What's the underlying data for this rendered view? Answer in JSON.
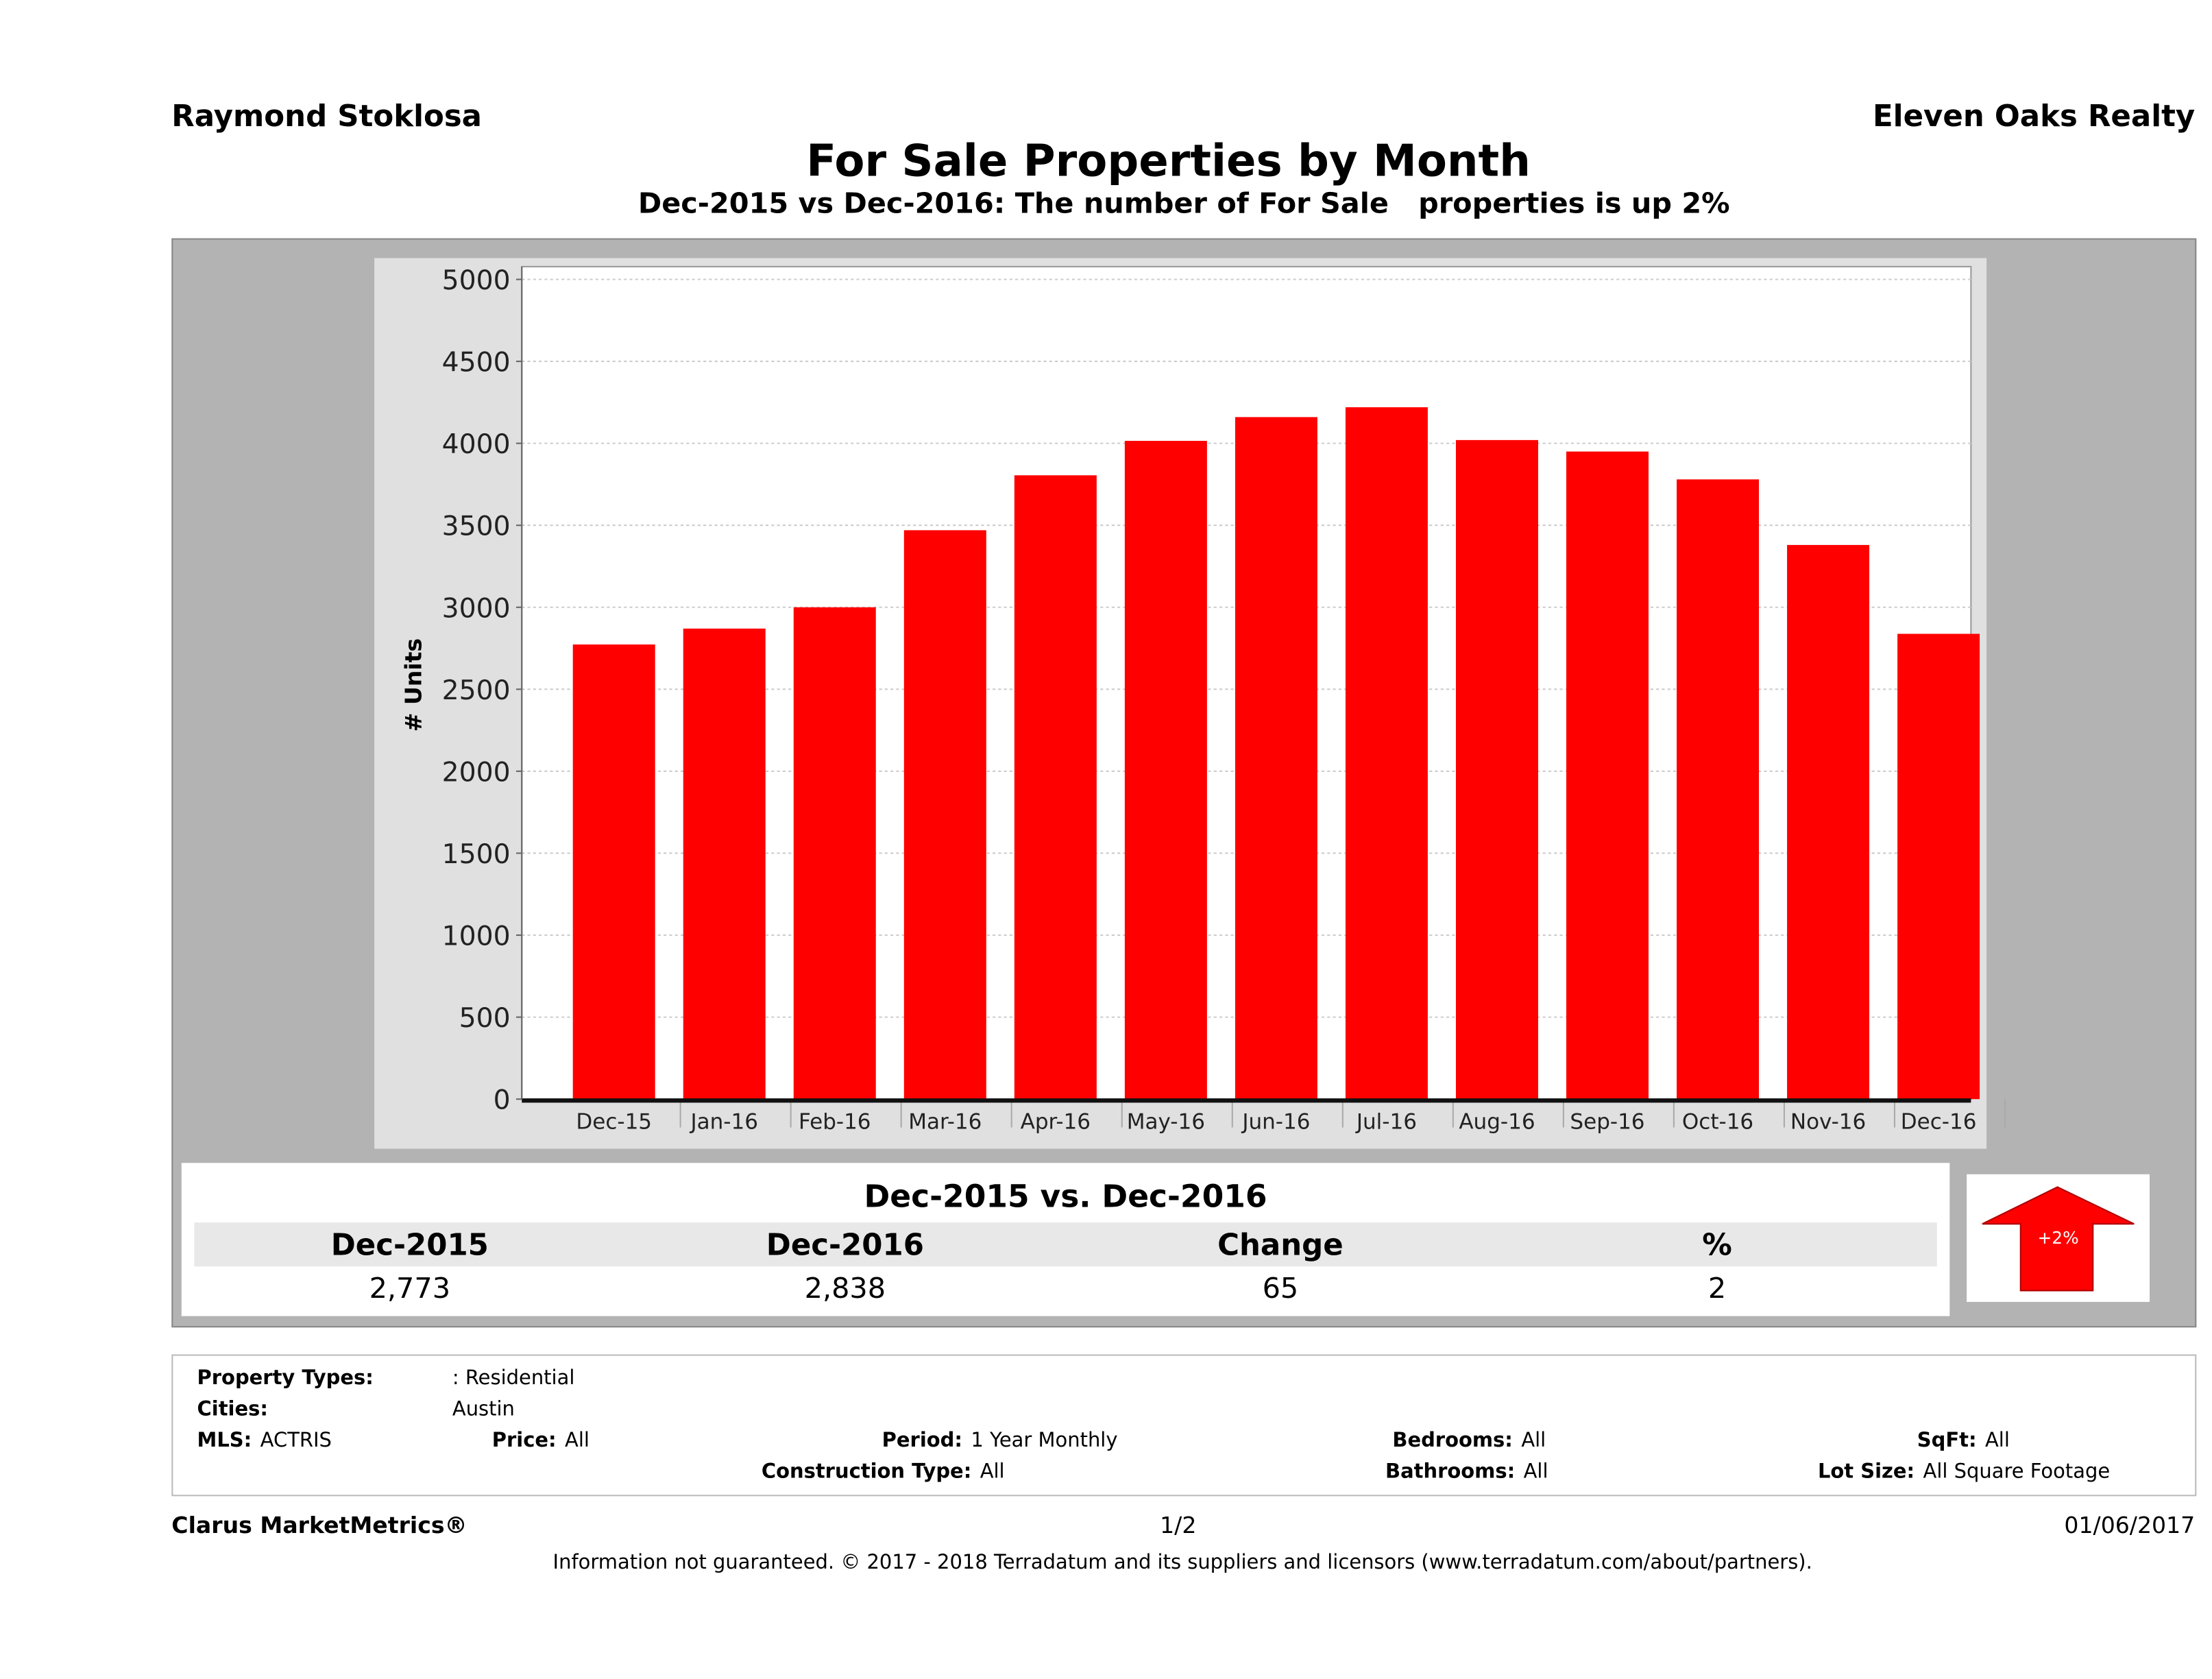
{
  "header": {
    "agent": "Raymond Stoklosa",
    "broker": "Eleven Oaks Realty",
    "title": "For Sale Properties by Month",
    "subtitle": "Dec-2015 vs Dec-2016: The number of For Sale   properties is up 2%"
  },
  "chart_data": {
    "type": "bar",
    "title": "For Sale Properties by Month",
    "xlabel": "",
    "ylabel": "# Units",
    "ylim": [
      0,
      5000
    ],
    "yticks": [
      "0",
      "500",
      "1000",
      "1500",
      "2000",
      "2500",
      "3000",
      "3500",
      "4000",
      "4500",
      "5000"
    ],
    "grid": true,
    "bar_color": "#ff0000",
    "categories": [
      "Dec-15",
      "Jan-16",
      "Feb-16",
      "Mar-16",
      "Apr-16",
      "May-16",
      "Jun-16",
      "Jul-16",
      "Aug-16",
      "Sep-16",
      "Oct-16",
      "Nov-16",
      "Dec-16"
    ],
    "values": [
      2773,
      2870,
      3000,
      3470,
      3805,
      4015,
      4160,
      4220,
      4020,
      3950,
      3780,
      3380,
      2838
    ]
  },
  "summary": {
    "title": "Dec-2015 vs. Dec-2016",
    "headers": [
      "Dec-2015",
      "Dec-2016",
      "Change",
      "%"
    ],
    "values": [
      "2,773",
      "2,838",
      "65",
      "2"
    ],
    "badge": "+2%",
    "badge_color": "#ff0000",
    "arrow_icon": "arrow-up-icon"
  },
  "criteria": {
    "property_types_label": "Property Types:",
    "property_types": ": Residential",
    "cities_label": "Cities:",
    "cities": "Austin",
    "mls_label": "MLS:",
    "mls": "ACTRIS",
    "price_label": "Price:",
    "price": "All",
    "period_label": "Period:",
    "period": "1 Year Monthly",
    "construction_label": "Construction Type:",
    "construction": "All",
    "bedrooms_label": "Bedrooms:",
    "bedrooms": "All",
    "bathrooms_label": "Bathrooms:",
    "bathrooms": "All",
    "sqft_label": "SqFt:",
    "sqft": "All",
    "lot_label": "Lot Size:",
    "lot": "All Square Footage"
  },
  "footer": {
    "brand": "Clarus MarketMetrics®",
    "page": "1/2",
    "date": "01/06/2017",
    "disclaimer": "Information not guaranteed. © 2017 - 2018 Terradatum and its suppliers and licensors (www.terradatum.com/about/partners)."
  }
}
